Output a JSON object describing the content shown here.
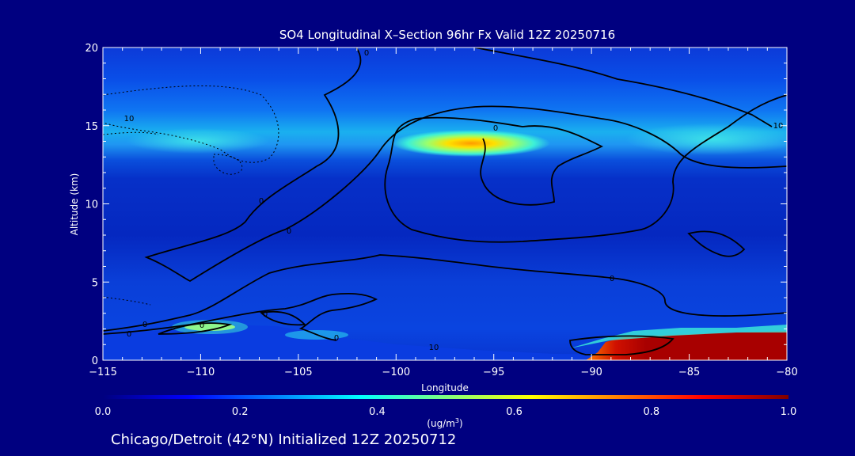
{
  "chart_data": {
    "type": "heatmap",
    "title": "SO4 Longitudinal X–Section 96hr  Fx Valid 12Z 20250716",
    "xlabel": "Longitude",
    "ylabel": "Altitude (km)",
    "xlim": [
      -115,
      -80
    ],
    "ylim": [
      0,
      20
    ],
    "x_ticks": [
      -115,
      -110,
      -105,
      -100,
      -95,
      -90,
      -85,
      -80
    ],
    "x_tick_labels": [
      "−115",
      "−110",
      "−105",
      "−100",
      "−95",
      "−90",
      "−85",
      "−80"
    ],
    "y_ticks": [
      0,
      5,
      10,
      15,
      20
    ],
    "y_tick_labels": [
      "0",
      "5",
      "10",
      "15",
      "20"
    ],
    "colorbar": {
      "min": 0.0,
      "max": 1.0,
      "ticks": [
        0.0,
        0.2,
        0.4,
        0.6,
        0.8,
        1.0
      ],
      "tick_labels": [
        "0.0",
        "0.2",
        "0.4",
        "0.6",
        "0.8",
        "1.0"
      ],
      "units_main": "(ug/m",
      "units_sup": "3",
      "units_end": ")",
      "colormap": [
        "#00007f",
        "#0000ff",
        "#007fff",
        "#00ffff",
        "#7fff7f",
        "#ffff00",
        "#ff7f00",
        "#ff0000",
        "#7f0000"
      ]
    },
    "contour_labels": [
      "0",
      "10",
      "0",
      "10",
      "0",
      "0",
      "0",
      "0",
      "0",
      "0",
      "0",
      "10",
      "0"
    ],
    "concentration_features": [
      {
        "name": "upper-tropospheric-band",
        "lon_range": [
          -115,
          -80
        ],
        "alt_km": 14,
        "peak_value": 0.6,
        "peak_lon": -96
      },
      {
        "name": "surface-plume-east",
        "lon_range": [
          -89,
          -80
        ],
        "alt_km_range": [
          0,
          1.8
        ],
        "value": 1.0
      },
      {
        "name": "surface-plume-west",
        "lon": -110,
        "alt_km": 2.2,
        "value": 0.55
      }
    ]
  },
  "footer": {
    "text": "Chicago/Detroit (42°N) Initialized 12Z 20250712"
  },
  "colors": {
    "background": "#000080",
    "text": "#ffffff",
    "contour": "#000000"
  }
}
